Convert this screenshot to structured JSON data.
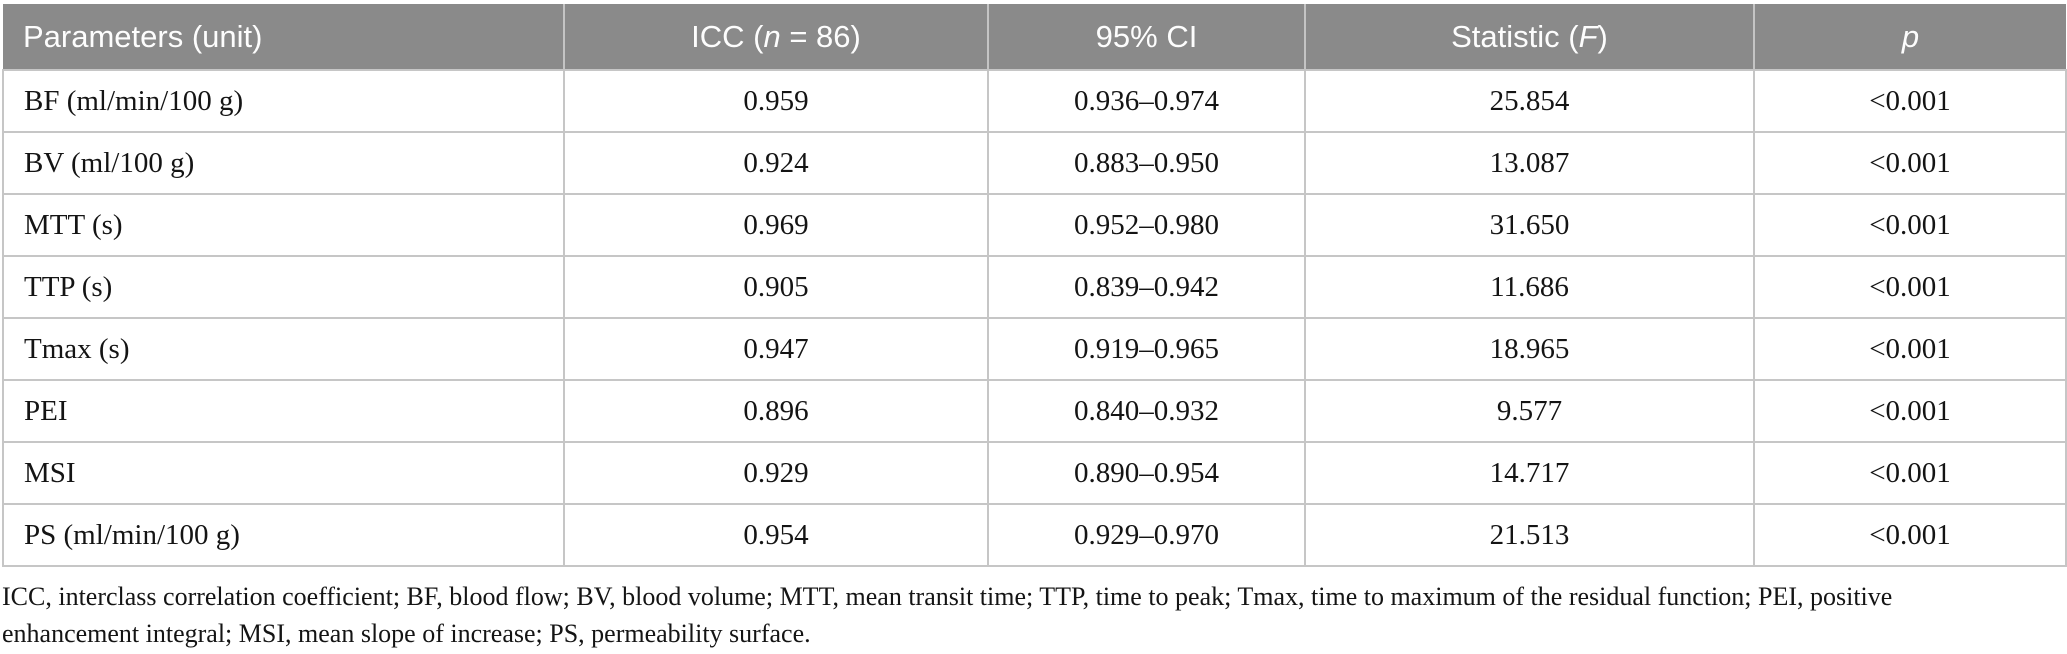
{
  "table": {
    "header": {
      "parameters": "Parameters (unit)",
      "icc": {
        "pre": "ICC (",
        "italic": "n",
        "post": " = 86)"
      },
      "ci": "95% CI",
      "statistic": {
        "pre": "Statistic (",
        "italic": "F",
        "post": ")"
      },
      "p": {
        "italic": "p"
      }
    },
    "rows": [
      {
        "param": "BF (ml/min/100 g)",
        "icc": "0.959",
        "ci": "0.936–0.974",
        "f": "25.854",
        "p": "<0.001"
      },
      {
        "param": "BV (ml/100 g)",
        "icc": "0.924",
        "ci": "0.883–0.950",
        "f": "13.087",
        "p": "<0.001"
      },
      {
        "param": "MTT (s)",
        "icc": "0.969",
        "ci": "0.952–0.980",
        "f": "31.650",
        "p": "<0.001"
      },
      {
        "param": "TTP (s)",
        "icc": "0.905",
        "ci": "0.839–0.942",
        "f": "11.686",
        "p": "<0.001"
      },
      {
        "param": "Tmax (s)",
        "icc": "0.947",
        "ci": "0.919–0.965",
        "f": "18.965",
        "p": "<0.001"
      },
      {
        "param": "PEI",
        "icc": "0.896",
        "ci": "0.840–0.932",
        "f": "9.577",
        "p": "<0.001"
      },
      {
        "param": "MSI",
        "icc": "0.929",
        "ci": "0.890–0.954",
        "f": "14.717",
        "p": "<0.001"
      },
      {
        "param": "PS (ml/min/100 g)",
        "icc": "0.954",
        "ci": "0.929–0.970",
        "f": "21.513",
        "p": "<0.001"
      }
    ]
  },
  "footnote": {
    "line1": "ICC, interclass correlation coefficient; BF, blood flow; BV, blood volume; MTT, mean transit time; TTP, time to peak; Tmax, time to maximum of the residual function; PEI, positive",
    "line2": "enhancement integral; MSI, mean slope of increase; PS, permeability surface."
  },
  "colors": {
    "header_bg": "#8a8a8a",
    "header_text": "#fdfdfd",
    "border": "#c6c6c6",
    "body_text": "#141414"
  }
}
